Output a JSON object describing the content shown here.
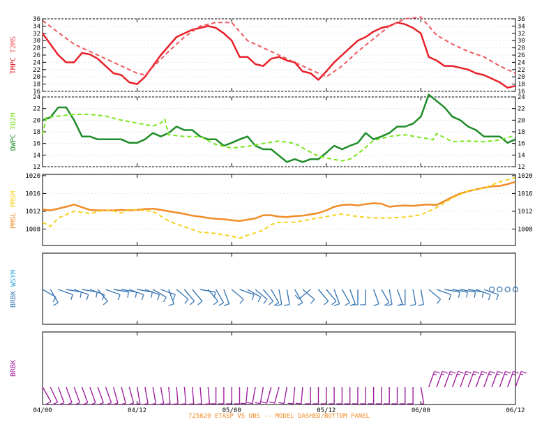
{
  "chart_data": [
    {
      "type": "line",
      "panel": "temperature",
      "label_parts": [
        {
          "text": "TMPC",
          "color": "#e8202a"
        },
        {
          "text": "T2MS",
          "color": "#f0585e"
        }
      ],
      "ylim": [
        16,
        36
      ],
      "yticks": [
        16,
        18,
        20,
        22,
        24,
        26,
        28,
        30,
        32,
        34,
        36
      ],
      "grid": true,
      "series": [
        {
          "role": "observed",
          "color": "#e8202a",
          "dashed": false,
          "x": [
            0,
            1,
            2,
            3,
            4,
            5,
            6,
            7,
            8,
            9,
            10,
            11,
            12,
            13,
            14,
            15,
            16,
            17,
            18,
            19,
            20,
            21,
            22,
            23,
            24,
            25,
            26,
            27,
            28,
            29,
            30,
            31,
            32,
            33,
            34,
            35,
            36,
            37,
            38,
            39,
            40,
            41,
            42,
            43,
            44,
            45,
            46,
            47,
            48,
            49,
            50,
            51,
            52,
            53,
            54,
            55,
            56,
            57,
            58,
            59,
            60
          ],
          "y": [
            32,
            29,
            26,
            24,
            24,
            26.6,
            26.2,
            25,
            23,
            21,
            20.5,
            18.5,
            18,
            20,
            23,
            26,
            28.5,
            31,
            32,
            33,
            33.5,
            34,
            33.5,
            32,
            30,
            25.5,
            25.5,
            23.5,
            23,
            25,
            25.5,
            24.5,
            24,
            21.5,
            21,
            19.2,
            21.5,
            24,
            26,
            28,
            30,
            31,
            32.5,
            33.5,
            34,
            35,
            34.5,
            33.5,
            32,
            25.5,
            24.5,
            23,
            23,
            22.5,
            22,
            21,
            20.5,
            19.5,
            18.5,
            17,
            17.5
          ]
        },
        {
          "role": "model",
          "color": "#f0585e",
          "dashed": true,
          "x": [
            0,
            4,
            8,
            12,
            13,
            16,
            18,
            20,
            22,
            24,
            26,
            30,
            34,
            36,
            38,
            40,
            44,
            46,
            48,
            50,
            52,
            54,
            56,
            58,
            60
          ],
          "y": [
            35.5,
            29,
            25,
            21,
            20.5,
            27,
            31,
            34,
            35,
            35,
            30,
            26,
            22,
            20,
            23,
            27,
            34,
            36,
            36.5,
            31.5,
            29,
            27,
            25.5,
            23,
            21
          ]
        }
      ]
    },
    {
      "type": "line",
      "panel": "dewpoint",
      "label_parts": [
        {
          "text": "DWPC",
          "color": "#1e8c28"
        },
        {
          "text": "TD2M",
          "color": "#78e61e"
        }
      ],
      "ylim": [
        12,
        24
      ],
      "yticks": [
        12,
        14,
        16,
        18,
        20,
        22,
        24
      ],
      "grid": true,
      "series": [
        {
          "role": "observed",
          "color": "#1e8c28",
          "dashed": false,
          "x": [
            0,
            1,
            2,
            3,
            4,
            5,
            6,
            7,
            8,
            9,
            10,
            11,
            12,
            13,
            14,
            15,
            16,
            17,
            18,
            19,
            20,
            21,
            22,
            23,
            24,
            25,
            26,
            27,
            28,
            29,
            30,
            31,
            32,
            33,
            34,
            35,
            36,
            37,
            38,
            39,
            40,
            41,
            42,
            43,
            44,
            45,
            46,
            47,
            48,
            49,
            50,
            51,
            52,
            53,
            54,
            55,
            56,
            57,
            58,
            59,
            60
          ],
          "y": [
            20,
            20.5,
            22.2,
            22.2,
            20,
            17.2,
            17.2,
            16.7,
            16.7,
            16.7,
            16.7,
            16.1,
            16.1,
            16.7,
            17.8,
            17.2,
            17.8,
            18.9,
            18.3,
            18.3,
            17.2,
            16.7,
            16.7,
            15.6,
            16.1,
            16.7,
            17.2,
            15.6,
            15,
            15,
            13.9,
            12.8,
            13.3,
            12.8,
            13.3,
            13.3,
            14.4,
            15.6,
            15,
            15.6,
            16.1,
            17.8,
            16.7,
            17.2,
            17.8,
            18.9,
            18.9,
            19.4,
            20.6,
            24.4,
            23.3,
            22.2,
            20.6,
            20,
            18.9,
            18.3,
            17.2,
            17.2,
            17.2,
            16.1,
            16.7
          ]
        },
        {
          "role": "model",
          "color": "#78e61e",
          "dashed": true,
          "x": [
            0,
            0.5,
            2,
            4,
            6,
            8,
            10,
            12,
            14,
            15,
            15.5,
            16,
            18,
            20,
            22,
            24,
            26,
            28,
            30,
            32,
            34,
            35,
            36,
            38,
            39,
            40,
            42,
            44,
            46,
            48,
            49,
            49.5,
            50,
            52,
            54,
            56,
            58,
            60
          ],
          "y": [
            17.5,
            20.5,
            20.7,
            21,
            21,
            20.7,
            20,
            19.5,
            19,
            19.5,
            20.2,
            17.5,
            17.2,
            17.2,
            15.8,
            15.2,
            15.5,
            16,
            16.4,
            16,
            14.5,
            13.8,
            13.5,
            13,
            13.3,
            14.2,
            16.5,
            17.2,
            17.5,
            17,
            16.8,
            16.6,
            17.7,
            16.3,
            16.4,
            16.3,
            16.6,
            17.4
          ]
        }
      ]
    },
    {
      "type": "line",
      "panel": "pressure",
      "label_parts": [
        {
          "text": "PMSL",
          "color": "#f08c28"
        },
        {
          "text": "PMSM",
          "color": "#f5d21e"
        }
      ],
      "ylim": [
        1004.3,
        1020.3
      ],
      "yticks": [
        1008,
        1012,
        1016,
        1020
      ],
      "grid": true,
      "series": [
        {
          "role": "observed",
          "color": "#f08c28",
          "dashed": false,
          "x": [
            0,
            1,
            2,
            3,
            4,
            5,
            6,
            7,
            8,
            9,
            10,
            11,
            12,
            13,
            14,
            15,
            16,
            17,
            18,
            19,
            20,
            21,
            22,
            23,
            24,
            25,
            26,
            27,
            28,
            29,
            30,
            31,
            32,
            33,
            34,
            35,
            36,
            37,
            38,
            39,
            40,
            41,
            42,
            43,
            44,
            45,
            46,
            47,
            48,
            49,
            50,
            51,
            52,
            53,
            54,
            55,
            56,
            57,
            58,
            59,
            60
          ],
          "y": [
            1012.4,
            1012.2,
            1012.6,
            1013,
            1013.5,
            1012.9,
            1012.3,
            1012.2,
            1012.2,
            1012.2,
            1012.3,
            1012.2,
            1012.3,
            1012.5,
            1012.6,
            1012.3,
            1012,
            1011.7,
            1011.4,
            1011,
            1010.8,
            1010.5,
            1010.3,
            1010.2,
            1010,
            1009.8,
            1010.1,
            1010.4,
            1011.1,
            1011.1,
            1010.8,
            1010.7,
            1010.9,
            1011,
            1011.3,
            1011.6,
            1012.2,
            1013,
            1013.4,
            1013.5,
            1013.3,
            1013.6,
            1013.8,
            1013.7,
            1013,
            1013.2,
            1013.3,
            1013.2,
            1013.4,
            1013.5,
            1013.4,
            1014.3,
            1015.2,
            1016,
            1016.5,
            1016.9,
            1017.3,
            1017.6,
            1017.7,
            1018.1,
            1018.6
          ]
        },
        {
          "role": "model",
          "color": "#f5d21e",
          "dashed": true,
          "x": [
            0,
            1,
            2,
            4,
            6,
            8,
            9,
            10,
            11,
            12,
            14,
            16,
            18,
            20,
            22,
            24,
            25,
            26,
            28,
            29,
            30,
            32,
            34,
            36,
            38,
            40,
            42,
            44,
            46,
            48,
            50,
            52,
            54,
            56,
            58,
            60
          ],
          "y": [
            1009.5,
            1008.6,
            1010.5,
            1012,
            1011.5,
            1012.3,
            1012.1,
            1011.6,
            1012.4,
            1012.3,
            1012,
            1009.8,
            1008.5,
            1007.3,
            1007,
            1006.4,
            1005.9,
            1006.6,
            1007.7,
            1009,
            1009.5,
            1009.5,
            1010.2,
            1010.8,
            1011.4,
            1010.8,
            1010.5,
            1010.5,
            1010.7,
            1011.2,
            1012.8,
            1015,
            1016.6,
            1017.2,
            1018.6,
            1019.6
          ]
        }
      ]
    },
    {
      "type": "barb",
      "panel": "wind-symbol",
      "label_parts": [
        {
          "text": "BRBK",
          "color": "#3c78b4"
        },
        {
          "text": "WSYM",
          "color": "#32aadc"
        }
      ],
      "color": "#3c78b4",
      "x": [
        0,
        1,
        2,
        3,
        4,
        5,
        6,
        7,
        8,
        9,
        10,
        11,
        12,
        13,
        14,
        15,
        16,
        17,
        18,
        19,
        20,
        21,
        22,
        23,
        24,
        25,
        26,
        27,
        28,
        29,
        30,
        31,
        32,
        33,
        34,
        35,
        36,
        37,
        38,
        39,
        40,
        41,
        42,
        43,
        44,
        45,
        46,
        47,
        48,
        49,
        50,
        51,
        52,
        53,
        54,
        55,
        56,
        57,
        58,
        59,
        60
      ],
      "direction": [
        120,
        150,
        110,
        100,
        110,
        100,
        110,
        140,
        110,
        100,
        100,
        110,
        100,
        110,
        120,
        110,
        160,
        130,
        140,
        140,
        100,
        140,
        150,
        160,
        130,
        110,
        120,
        130,
        140,
        150,
        170,
        170,
        150,
        130,
        230,
        140,
        140,
        160,
        150,
        160,
        180,
        180,
        160,
        150,
        170,
        160,
        180,
        170,
        170,
        130,
        110,
        100,
        100,
        100,
        100,
        110,
        110,
        100,
        0,
        0,
        0
      ],
      "speed_kt": [
        10,
        10,
        10,
        10,
        10,
        10,
        10,
        10,
        10,
        10,
        10,
        10,
        10,
        10,
        10,
        10,
        10,
        10,
        10,
        10,
        10,
        10,
        10,
        10,
        10,
        10,
        10,
        10,
        10,
        10,
        10,
        10,
        10,
        10,
        10,
        10,
        10,
        10,
        10,
        10,
        10,
        10,
        10,
        10,
        10,
        10,
        10,
        10,
        10,
        10,
        10,
        10,
        10,
        10,
        10,
        10,
        10,
        10,
        0,
        0,
        0
      ],
      "calm": [
        false,
        false,
        false,
        false,
        false,
        false,
        false,
        false,
        false,
        false,
        false,
        false,
        false,
        false,
        false,
        false,
        false,
        false,
        false,
        false,
        false,
        false,
        false,
        false,
        false,
        false,
        false,
        false,
        false,
        false,
        false,
        false,
        false,
        false,
        false,
        false,
        false,
        false,
        false,
        false,
        false,
        false,
        false,
        false,
        false,
        false,
        false,
        false,
        false,
        false,
        false,
        false,
        false,
        false,
        false,
        false,
        false,
        true,
        true,
        true,
        true
      ]
    },
    {
      "type": "barb",
      "panel": "wind-model",
      "label_parts": [
        {
          "text": "BRBK",
          "color": "#a01ea0"
        }
      ],
      "color": "#a01ea0",
      "x": [
        0,
        1,
        2,
        3,
        4,
        5,
        6,
        7,
        8,
        9,
        10,
        11,
        12,
        13,
        14,
        15,
        16,
        17,
        18,
        19,
        20,
        21,
        22,
        23,
        24,
        25,
        26,
        27,
        28,
        29,
        30,
        31,
        32,
        33,
        34,
        35,
        36,
        37,
        38,
        39,
        40,
        41,
        42,
        43,
        44,
        45,
        46,
        47,
        48,
        49,
        50,
        51,
        52,
        53,
        54,
        55,
        56,
        57,
        58,
        59,
        60
      ],
      "direction": [
        150,
        155,
        160,
        160,
        160,
        160,
        160,
        160,
        160,
        165,
        165,
        165,
        170,
        170,
        170,
        170,
        175,
        175,
        175,
        175,
        175,
        175,
        180,
        180,
        180,
        180,
        185,
        190,
        190,
        195,
        195,
        190,
        185,
        185,
        180,
        180,
        180,
        180,
        180,
        180,
        180,
        180,
        180,
        180,
        180,
        180,
        180,
        180,
        170,
        20,
        20,
        20,
        20,
        20,
        20,
        20,
        20,
        20,
        20,
        20,
        20
      ],
      "speed_kt": [
        10,
        10,
        10,
        10,
        10,
        10,
        10,
        10,
        10,
        10,
        10,
        10,
        10,
        10,
        10,
        10,
        10,
        10,
        10,
        10,
        10,
        10,
        10,
        10,
        10,
        10,
        10,
        10,
        10,
        10,
        10,
        10,
        10,
        10,
        10,
        10,
        10,
        10,
        10,
        10,
        10,
        10,
        10,
        10,
        10,
        10,
        10,
        10,
        10,
        15,
        15,
        15,
        15,
        15,
        15,
        15,
        15,
        15,
        15,
        15,
        15
      ],
      "calm": []
    }
  ],
  "x_axis": {
    "range": [
      0,
      60
    ],
    "ticks": [
      {
        "x": 0,
        "label": "04/00"
      },
      {
        "x": 12,
        "label": "04/12"
      },
      {
        "x": 24,
        "label": "05/00"
      },
      {
        "x": 36,
        "label": "05/12"
      },
      {
        "x": 48,
        "label": "06/00"
      },
      {
        "x": 60,
        "label": "06/12"
      }
    ]
  },
  "footer": "725620  ETASP VS OBS -- MODEL DASHED/BOTTOM PANEL"
}
